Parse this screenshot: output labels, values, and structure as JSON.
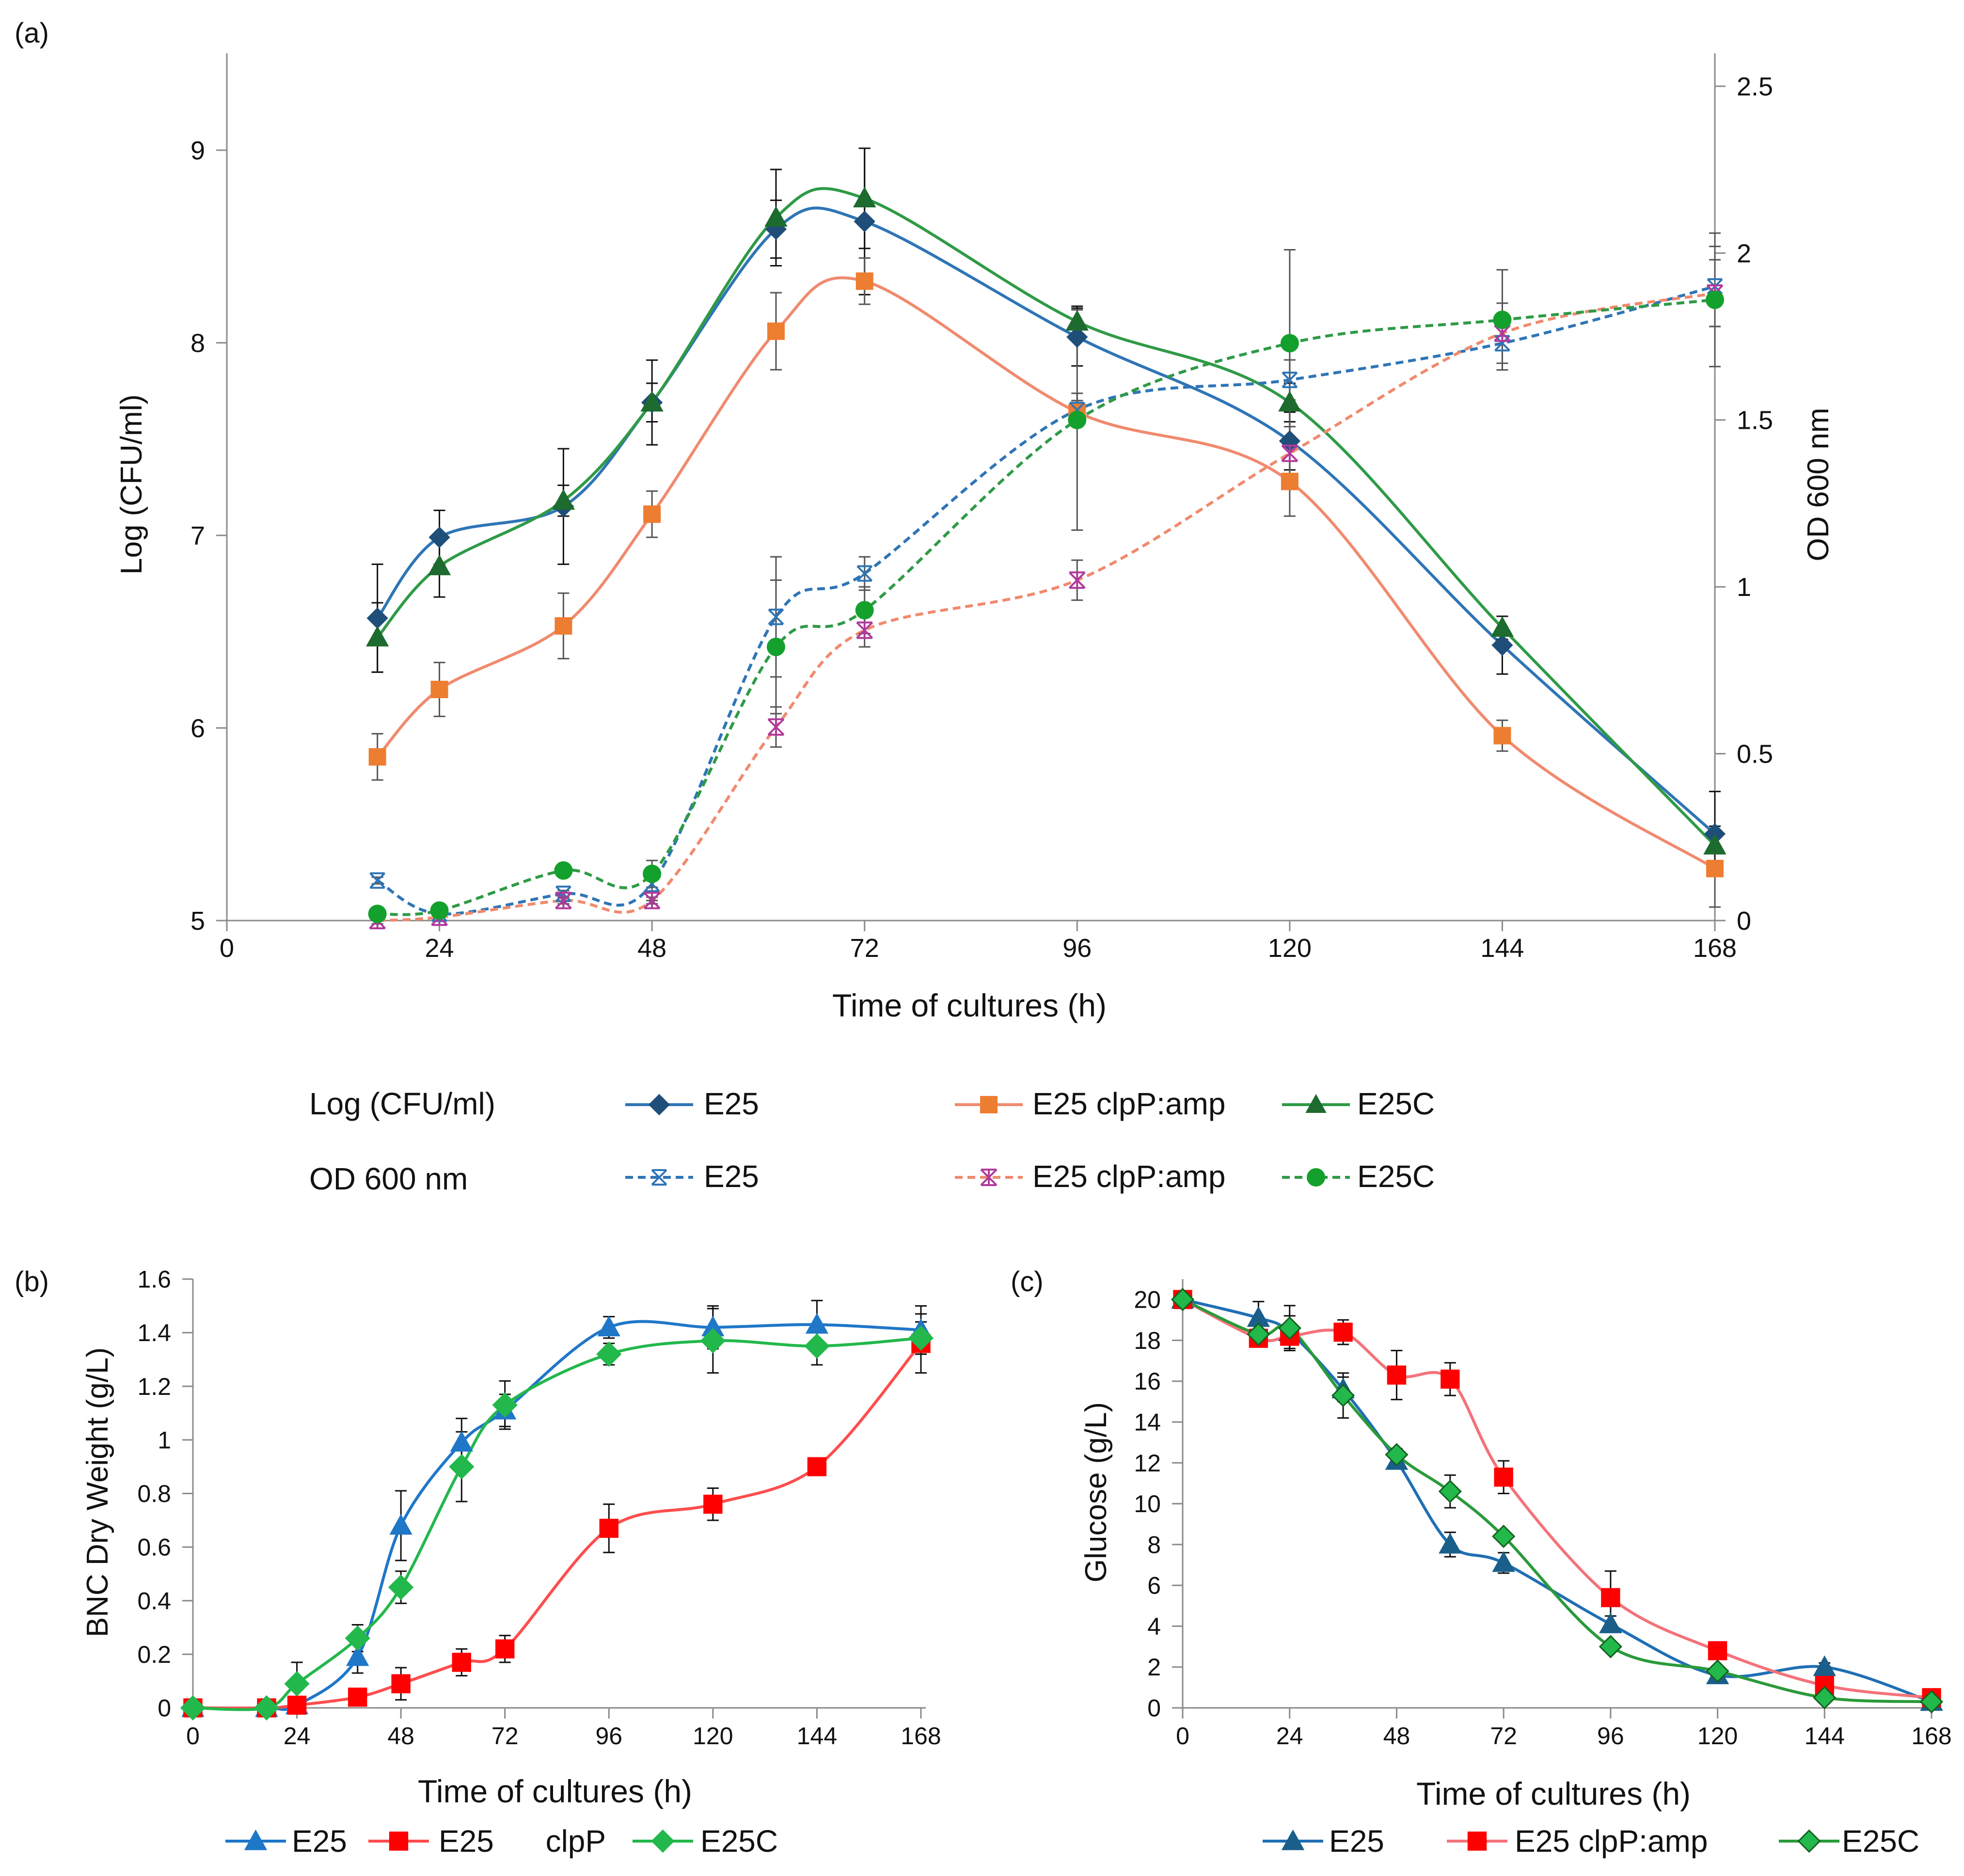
{
  "panel_labels": {
    "a": "(a)",
    "b": "(b)",
    "c": "(c)"
  },
  "legend_a": {
    "row1_label": "Log (CFU/ml)",
    "row2_label": "OD  600 nm",
    "row1_entries": [
      "E25",
      "E25 clpP:amp",
      "E25C"
    ],
    "row2_entries": [
      "E25",
      "E25 clpP:amp",
      "E25C"
    ]
  },
  "legend_b": {
    "entries": [
      "E25",
      "E25      clpP",
      "E25C"
    ]
  },
  "legend_c": {
    "entries": [
      "E25",
      "E25 clpP:amp",
      "E25C"
    ]
  },
  "colors": {
    "a_E25": "#2e75b6",
    "a_clpP": "#f08a6e",
    "a_E25C": "#2f9a46",
    "a_E25_marker": "#1f4e79",
    "a_clpP_marker": "#ed7d31",
    "a_E25C_marker": "#1d6b2e",
    "a_od_E25_marker": "#2e75b6",
    "a_od_clpP_marker": "#b03a9a",
    "a_od_E25C_marker": "#14a02c",
    "b_E25": "#1f77c8",
    "b_clpP": "#ff0000",
    "b_E25C": "#22b84c",
    "c_E25_line": "#1f6fb4",
    "c_E25_marker": "#1a5e8a",
    "c_clpP": "#ff0000",
    "c_clpP_line": "#f4727a",
    "c_E25C_line": "#2a9a3a",
    "c_E25C_marker": "#22b84c"
  },
  "chart_data": [
    {
      "id": "a",
      "type": "line",
      "title": "",
      "xlabel": "Time of cultures (h)",
      "ylabel": "Log (CFU/ml)",
      "y2label": "OD  600 nm",
      "xlim": [
        0,
        168
      ],
      "ylim": [
        5,
        9.5
      ],
      "y2lim": [
        0,
        2.5
      ],
      "xticks": [
        0,
        24,
        48,
        72,
        96,
        120,
        144,
        168
      ],
      "yticks": [
        5,
        6,
        7,
        8,
        9
      ],
      "y2ticks": [
        0,
        0.5,
        1,
        1.5,
        2,
        2.5
      ],
      "x_tick_labels": [
        "0",
        "24",
        "48",
        "72",
        "96",
        "120",
        "144",
        "168"
      ],
      "y_tick_labels": [
        "5",
        "6",
        "7",
        "8",
        "9"
      ],
      "y2_tick_labels": [
        "0",
        "0.5",
        "1",
        "1.5",
        "2",
        "2.5"
      ],
      "grid": false,
      "series": [
        {
          "name": "E25",
          "group": "Log (CFU/ml)",
          "axis": "left",
          "marker": "diamond",
          "x": [
            17,
            24,
            38,
            48,
            62,
            72,
            96,
            120,
            144,
            168
          ],
          "y": [
            6.57,
            6.99,
            7.15,
            7.69,
            8.59,
            8.63,
            8.03,
            7.49,
            6.43,
            5.45
          ],
          "err": [
            0.28,
            0.14,
            0.3,
            0.22,
            0.15,
            0.38,
            0.15,
            0.15,
            0.15,
            0.22
          ]
        },
        {
          "name": "E25 clpP:amp",
          "group": "Log (CFU/ml)",
          "axis": "left",
          "marker": "square",
          "x": [
            17,
            24,
            38,
            48,
            62,
            72,
            96,
            120,
            144,
            168
          ],
          "y": [
            5.85,
            6.2,
            6.53,
            7.11,
            8.06,
            8.32,
            7.64,
            7.28,
            5.96,
            5.27
          ],
          "err": [
            0.12,
            0.14,
            0.17,
            0.12,
            0.2,
            0.12,
            0.06,
            0.18,
            0.08,
            0.2
          ]
        },
        {
          "name": "E25C",
          "group": "Log (CFU/ml)",
          "axis": "left",
          "marker": "triangle",
          "x": [
            17,
            24,
            38,
            48,
            62,
            72,
            96,
            120,
            144,
            168
          ],
          "y": [
            6.47,
            6.84,
            7.18,
            7.69,
            8.65,
            8.75,
            8.11,
            7.69,
            6.52,
            5.39
          ],
          "err": [
            0.18,
            0.16,
            0.08,
            0.1,
            0.25,
            0.26,
            0.08,
            0.1,
            0.06,
            0.1
          ]
        },
        {
          "name": "E25",
          "group": "OD  600 nm",
          "axis": "right",
          "marker": "x",
          "dashed": true,
          "x": [
            17,
            24,
            38,
            48,
            62,
            72,
            96,
            120,
            144,
            168
          ],
          "y": [
            0.12,
            0.02,
            0.08,
            0.11,
            0.91,
            1.04,
            1.53,
            1.62,
            1.73,
            1.9
          ],
          "err": [
            0.01,
            0.01,
            0.01,
            0.05,
            0.18,
            0.05,
            0.05,
            0.06,
            0.08,
            0.12
          ]
        },
        {
          "name": "E25 clpP:amp",
          "group": "OD  600 nm",
          "axis": "right",
          "marker": "star",
          "dashed": true,
          "x": [
            17,
            24,
            38,
            48,
            62,
            72,
            96,
            120,
            144,
            168
          ],
          "y": [
            0.0,
            0.01,
            0.06,
            0.06,
            0.58,
            0.87,
            1.02,
            1.4,
            1.76,
            1.88
          ],
          "err": [
            0.01,
            0.01,
            0.01,
            0.01,
            0.06,
            0.05,
            0.06,
            0.08,
            0.09,
            0.1
          ]
        },
        {
          "name": "E25C",
          "group": "OD  600 nm",
          "axis": "right",
          "marker": "circle",
          "dashed": true,
          "x": [
            17,
            24,
            38,
            48,
            62,
            72,
            96,
            120,
            144,
            168
          ],
          "y": [
            0.02,
            0.03,
            0.15,
            0.14,
            0.82,
            0.93,
            1.5,
            1.73,
            1.8,
            1.86
          ],
          "err": [
            0.01,
            0.01,
            0.01,
            0.04,
            0.2,
            0.07,
            0.33,
            0.28,
            0.15,
            0.2
          ]
        }
      ]
    },
    {
      "id": "b",
      "type": "line",
      "title": "",
      "xlabel": "Time of cultures (h)",
      "ylabel": "BNC Dry Weight  (g/L)",
      "xlim": [
        0,
        168
      ],
      "ylim": [
        0,
        1.6
      ],
      "xticks": [
        0,
        24,
        48,
        72,
        96,
        120,
        144,
        168
      ],
      "yticks": [
        0,
        0.2,
        0.4,
        0.6,
        0.8,
        1,
        1.2,
        1.4,
        1.6
      ],
      "x_tick_labels": [
        "0",
        "24",
        "48",
        "72",
        "96",
        "120",
        "144",
        "168"
      ],
      "y_tick_labels": [
        "0",
        "0.2",
        "0.4",
        "0.6",
        "0.8",
        "1",
        "1.2",
        "1.4",
        "1.6"
      ],
      "grid": false,
      "series": [
        {
          "name": "E25",
          "marker": "triangle",
          "x": [
            0,
            17,
            24,
            38,
            48,
            62,
            72,
            96,
            120,
            144,
            168
          ],
          "y": [
            0,
            0,
            0.01,
            0.19,
            0.68,
            0.99,
            1.11,
            1.42,
            1.42,
            1.43,
            1.41
          ],
          "err": [
            0,
            0,
            0,
            0.06,
            0.13,
            0.09,
            0.06,
            0.04,
            0.08,
            0.09,
            0.09
          ]
        },
        {
          "name": "E25      clpP",
          "marker": "square",
          "x": [
            0,
            17,
            24,
            38,
            48,
            62,
            72,
            96,
            120,
            144,
            168
          ],
          "y": [
            0,
            0,
            0.01,
            0.04,
            0.09,
            0.17,
            0.22,
            0.67,
            0.76,
            0.9,
            1.36
          ],
          "err": [
            0,
            0,
            0,
            0.02,
            0.06,
            0.05,
            0.05,
            0.09,
            0.06,
            0.02,
            0.11
          ]
        },
        {
          "name": "E25C",
          "marker": "diamond",
          "x": [
            0,
            17,
            24,
            38,
            48,
            62,
            72,
            96,
            120,
            144,
            168
          ],
          "y": [
            0,
            0,
            0.09,
            0.26,
            0.45,
            0.9,
            1.13,
            1.32,
            1.37,
            1.35,
            1.38
          ],
          "err": [
            0,
            0,
            0.08,
            0.05,
            0.06,
            0.13,
            0.09,
            0.04,
            0.12,
            0.07,
            0.06
          ]
        }
      ]
    },
    {
      "id": "c",
      "type": "line",
      "title": "",
      "xlabel": "Time of cultures (h)",
      "ylabel": "Glucose (g/L)",
      "xlim": [
        0,
        168
      ],
      "ylim": [
        0,
        20
      ],
      "xticks": [
        0,
        24,
        48,
        72,
        96,
        120,
        144,
        168
      ],
      "yticks": [
        0,
        2,
        4,
        6,
        8,
        10,
        12,
        14,
        16,
        18,
        20
      ],
      "x_tick_labels": [
        "0",
        "24",
        "48",
        "72",
        "96",
        "120",
        "144",
        "168"
      ],
      "y_tick_labels": [
        "0",
        "2",
        "4",
        "6",
        "8",
        "10",
        "12",
        "14",
        "16",
        "18",
        "20"
      ],
      "grid": false,
      "series": [
        {
          "name": "E25",
          "marker": "triangle",
          "x": [
            0,
            17,
            24,
            36,
            48,
            60,
            72,
            96,
            120,
            144,
            168
          ],
          "y": [
            20,
            19.1,
            18.4,
            15.6,
            12.1,
            8.0,
            7.1,
            4.1,
            1.6,
            2.0,
            0.3
          ],
          "err": [
            0,
            0.8,
            0.8,
            0.6,
            0.3,
            0.6,
            0.5,
            0.4,
            0.2,
            0.2,
            0.1
          ]
        },
        {
          "name": "E25 clpP:amp",
          "marker": "square",
          "x": [
            0,
            17,
            24,
            36,
            48,
            60,
            72,
            96,
            120,
            144,
            168
          ],
          "y": [
            20,
            18.1,
            18.2,
            18.4,
            16.3,
            16.1,
            11.3,
            5.4,
            2.8,
            1.1,
            0.5
          ],
          "err": [
            0,
            0.4,
            0.4,
            0.6,
            1.2,
            0.8,
            0.8,
            1.3,
            0.2,
            0.2,
            0.1
          ]
        },
        {
          "name": "E25C",
          "marker": "diamond",
          "x": [
            0,
            17,
            24,
            36,
            48,
            60,
            72,
            96,
            120,
            144,
            168
          ],
          "y": [
            20,
            18.3,
            18.6,
            15.3,
            12.4,
            10.6,
            8.4,
            3.0,
            1.8,
            0.5,
            0.3
          ],
          "err": [
            0,
            0.5,
            1.1,
            1.1,
            0.3,
            0.8,
            0.1,
            0.2,
            0.1,
            0.1,
            0.1
          ]
        }
      ]
    }
  ]
}
